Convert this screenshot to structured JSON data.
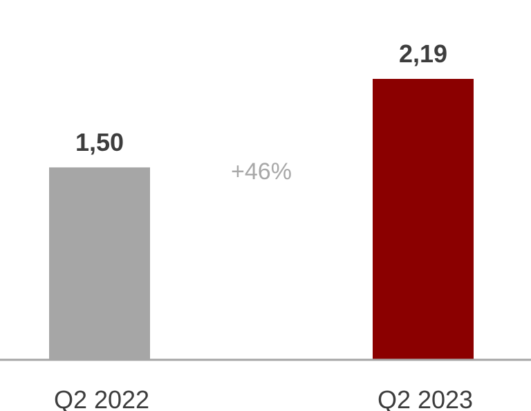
{
  "chart_data": {
    "type": "bar",
    "categories": [
      "Q2 2022",
      "Q2 2023"
    ],
    "values": [
      1.5,
      2.19
    ],
    "value_labels": [
      "1,50",
      "2,19"
    ],
    "bar_colors": [
      "#a6a6a6",
      "#8b0000"
    ],
    "axis_color": "#a6a6a6",
    "annotation": "+46%",
    "title": "",
    "xlabel": "",
    "ylabel": "",
    "ylim": [
      0,
      2.6
    ],
    "grid": false,
    "legend": "none"
  }
}
